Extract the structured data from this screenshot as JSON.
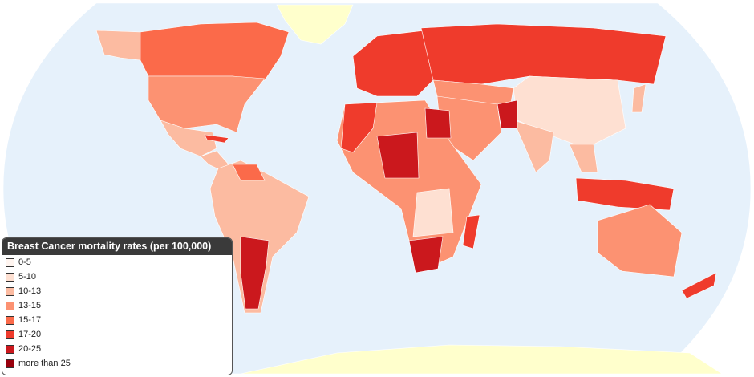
{
  "legend": {
    "title": "Breast Cancer mortality rates (per 100,000)",
    "items": [
      {
        "label": "0-5",
        "color": "#fff5f0"
      },
      {
        "label": "5-10",
        "color": "#fee0d2"
      },
      {
        "label": "10-13",
        "color": "#fcbba1"
      },
      {
        "label": "13-15",
        "color": "#fc9272"
      },
      {
        "label": "15-17",
        "color": "#fb6a4a"
      },
      {
        "label": "17-20",
        "color": "#ef3b2c"
      },
      {
        "label": "20-25",
        "color": "#cb181d"
      },
      {
        "label": "more than 25",
        "color": "#99000d"
      }
    ]
  }
}
